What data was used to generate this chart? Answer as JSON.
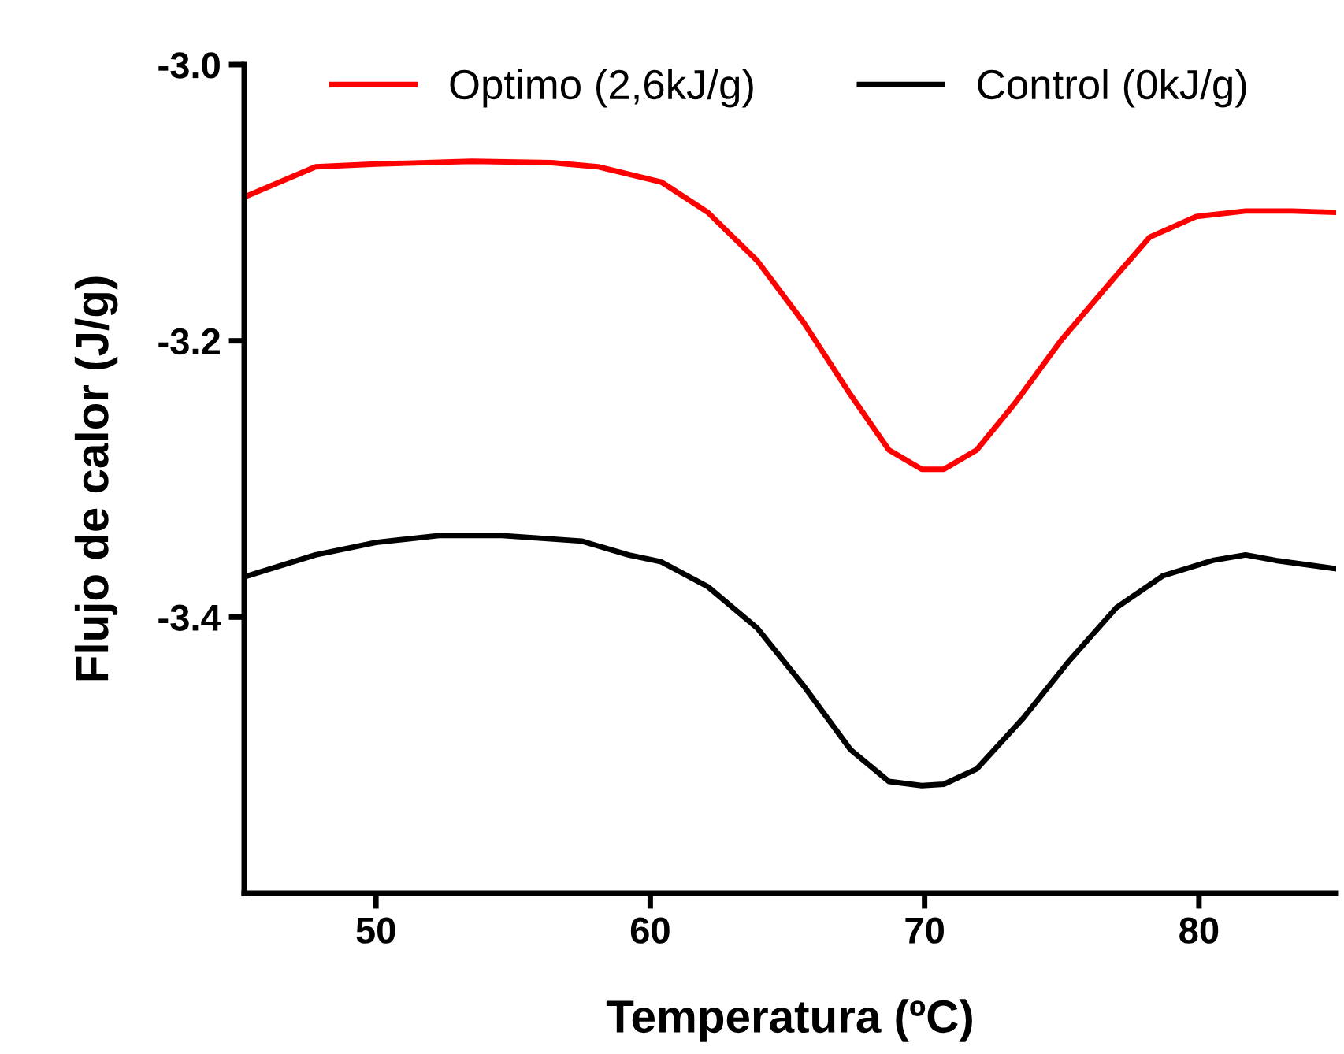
{
  "chart_data": {
    "type": "line",
    "xlabel": "Temperatura (ºC)",
    "ylabel": "Flujo de calor (J/g)",
    "xlim": [
      45.2,
      85
    ],
    "ylim": [
      -3.6,
      -3.0
    ],
    "xticks": [
      50,
      60,
      70,
      80
    ],
    "yticks": [
      {
        "value": -3.0,
        "label": "-3.0"
      },
      {
        "value": -3.2,
        "label": "-3.2"
      },
      {
        "value": -3.4,
        "label": "-3.4"
      }
    ],
    "grid": false,
    "legend": "top",
    "marker": "none",
    "line_style": "solid",
    "series": [
      {
        "name": "Optimo (2,6kJ/g)",
        "color": "#ff0000",
        "x": [
          45.2,
          47.8,
          50,
          53.5,
          56.4,
          58.1,
          60.4,
          62.1,
          63.9,
          65.6,
          67.3,
          68.7,
          69.9,
          70.7,
          71.9,
          73.3,
          75.0,
          76.8,
          78.2,
          79.9,
          81.7,
          83.4,
          85.0
        ],
        "values": [
          -3.096,
          -3.074,
          -3.072,
          -3.07,
          -3.071,
          -3.074,
          -3.085,
          -3.107,
          -3.142,
          -3.187,
          -3.239,
          -3.279,
          -3.293,
          -3.293,
          -3.279,
          -3.245,
          -3.199,
          -3.157,
          -3.125,
          -3.11,
          -3.106,
          -3.106,
          -3.107
        ]
      },
      {
        "name": "Control (0kJ/g)",
        "color": "#000000",
        "x": [
          45.2,
          47.8,
          50,
          52.3,
          54.6,
          57.5,
          59.2,
          60.4,
          62.1,
          63.9,
          65.6,
          67.3,
          68.7,
          69.9,
          70.7,
          71.9,
          73.6,
          75.3,
          77.0,
          78.7,
          80.5,
          81.7,
          82.8,
          85.0
        ],
        "values": [
          -3.371,
          -3.355,
          -3.346,
          -3.341,
          -3.341,
          -3.345,
          -3.355,
          -3.36,
          -3.378,
          -3.408,
          -3.45,
          -3.496,
          -3.519,
          -3.522,
          -3.521,
          -3.51,
          -3.473,
          -3.431,
          -3.393,
          -3.37,
          -3.359,
          -3.355,
          -3.359,
          -3.365
        ]
      }
    ]
  }
}
